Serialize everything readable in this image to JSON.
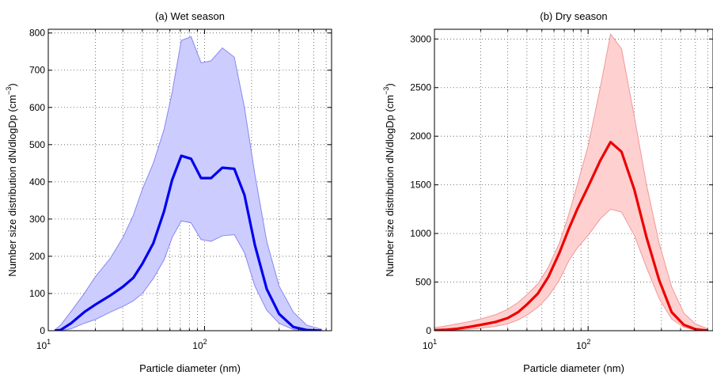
{
  "colors": {
    "wet_line": "#0000ee",
    "wet_band": "#ccccff",
    "wet_band_edge": "#8888ee",
    "dry_line": "#ee0000",
    "dry_band": "#ffd0d0",
    "dry_band_edge": "#ee9999",
    "grid": "#555555"
  },
  "chart_data": [
    {
      "type": "area",
      "title": "(a) Wet season",
      "xlabel": "Particle diameter (nm)",
      "ylabel": "Number size distribution dN/dlogDp (cm",
      "ylabel_sup": "−3",
      "ylabel_close": ")",
      "xscale": "log",
      "xlim": [
        10,
        650
      ],
      "ylim": [
        0,
        810
      ],
      "grid": true,
      "x_ticks": [
        {
          "value": 10,
          "base": "10",
          "exp": "1"
        },
        {
          "value": 100,
          "base": "10",
          "exp": "2"
        }
      ],
      "y_ticks": [
        0,
        100,
        200,
        300,
        400,
        500,
        600,
        700,
        800
      ],
      "x": [
        11,
        12,
        14,
        17,
        20,
        25,
        30,
        35,
        40,
        47,
        55,
        62,
        71,
        82,
        95,
        110,
        130,
        155,
        180,
        210,
        250,
        300,
        370,
        450,
        560
      ],
      "series": [
        {
          "role": "band-upper",
          "values": [
            2,
            15,
            52,
            100,
            145,
            195,
            250,
            310,
            380,
            450,
            540,
            640,
            780,
            790,
            720,
            725,
            760,
            735,
            600,
            420,
            240,
            120,
            50,
            15,
            4
          ]
        },
        {
          "role": "median",
          "values": [
            0,
            2,
            20,
            50,
            70,
            95,
            118,
            142,
            180,
            235,
            320,
            405,
            470,
            462,
            410,
            410,
            438,
            435,
            365,
            230,
            112,
            45,
            10,
            2,
            0
          ]
        },
        {
          "role": "band-lower",
          "values": [
            0,
            0,
            5,
            20,
            30,
            50,
            65,
            80,
            100,
            140,
            190,
            250,
            295,
            290,
            245,
            240,
            255,
            258,
            210,
            120,
            55,
            20,
            3,
            0,
            0
          ]
        }
      ]
    },
    {
      "type": "area",
      "title": "(b) Dry season",
      "xlabel": "Particle diameter (nm)",
      "ylabel": "Number size distribution dN/dlogDp (cm",
      "ylabel_sup": "−3",
      "ylabel_close": ")",
      "xscale": "log",
      "xlim": [
        10,
        650
      ],
      "ylim": [
        0,
        3100
      ],
      "grid": true,
      "x_ticks": [
        {
          "value": 10,
          "base": "10",
          "exp": "1"
        },
        {
          "value": 100,
          "base": "10",
          "exp": "2"
        }
      ],
      "y_ticks": [
        0,
        500,
        1000,
        1500,
        2000,
        2500,
        3000
      ],
      "x": [
        10,
        12,
        14,
        17,
        20,
        25,
        30,
        35,
        40,
        47,
        55,
        65,
        75,
        85,
        100,
        120,
        140,
        165,
        200,
        240,
        290,
        350,
        420,
        500,
        600
      ],
      "series": [
        {
          "role": "band-upper",
          "values": [
            30,
            50,
            70,
            95,
            120,
            165,
            220,
            290,
            370,
            480,
            650,
            900,
            1200,
            1500,
            1900,
            2500,
            3050,
            2900,
            2200,
            1500,
            900,
            450,
            180,
            70,
            20
          ]
        },
        {
          "role": "median",
          "values": [
            5,
            10,
            20,
            40,
            60,
            90,
            130,
            190,
            270,
            380,
            550,
            800,
            1050,
            1250,
            1480,
            1750,
            1940,
            1840,
            1450,
            960,
            520,
            190,
            60,
            15,
            2
          ]
        },
        {
          "role": "band-lower",
          "values": [
            0,
            0,
            5,
            15,
            25,
            45,
            70,
            110,
            160,
            240,
            350,
            520,
            720,
            850,
            980,
            1150,
            1250,
            1220,
            980,
            650,
            330,
            120,
            35,
            5,
            0
          ]
        }
      ]
    }
  ]
}
